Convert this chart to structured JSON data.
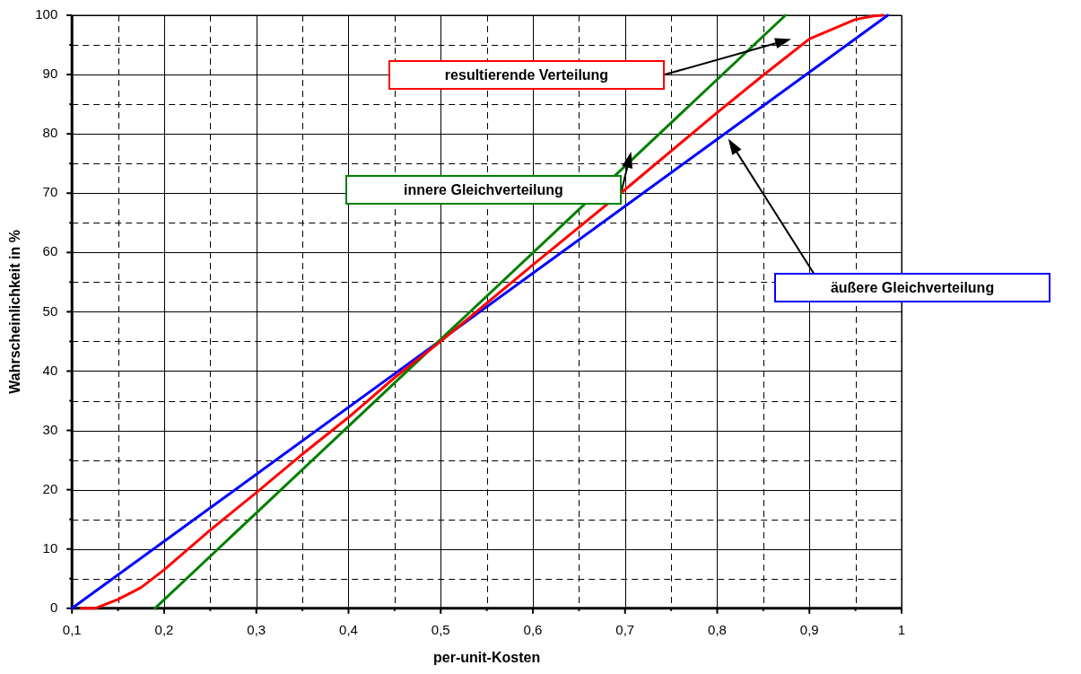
{
  "chart_data": {
    "type": "line",
    "xlabel": "per-unit-Kosten",
    "ylabel": "Wahrscheinlichkeit in %",
    "xlim": [
      0.1,
      1
    ],
    "ylim": [
      0,
      100
    ],
    "xticks": [
      {
        "value": 0.1,
        "label": "0,1"
      },
      {
        "value": 0.15,
        "label": null
      },
      {
        "value": 0.2,
        "label": "0,2"
      },
      {
        "value": 0.25,
        "label": null
      },
      {
        "value": 0.3,
        "label": "0,3"
      },
      {
        "value": 0.35,
        "label": null
      },
      {
        "value": 0.4,
        "label": "0,4"
      },
      {
        "value": 0.45,
        "label": null
      },
      {
        "value": 0.5,
        "label": "0,5"
      },
      {
        "value": 0.55,
        "label": null
      },
      {
        "value": 0.6,
        "label": "0,6"
      },
      {
        "value": 0.65,
        "label": null
      },
      {
        "value": 0.7,
        "label": "0,7"
      },
      {
        "value": 0.75,
        "label": null
      },
      {
        "value": 0.8,
        "label": "0,8"
      },
      {
        "value": 0.85,
        "label": null
      },
      {
        "value": 0.9,
        "label": "0,9"
      },
      {
        "value": 0.95,
        "label": null
      },
      1
    ],
    "yticks": [
      0,
      {
        "value": 5,
        "label": null
      },
      10,
      {
        "value": 15,
        "label": null
      },
      20,
      {
        "value": 25,
        "label": null
      },
      30,
      {
        "value": 35,
        "label": null
      },
      40,
      {
        "value": 45,
        "label": null
      },
      50,
      {
        "value": 55,
        "label": null
      },
      60,
      {
        "value": 65,
        "label": null
      },
      70,
      {
        "value": 75,
        "label": null
      },
      80,
      {
        "value": 85,
        "label": null
      },
      90,
      {
        "value": 95,
        "label": null
      },
      100
    ],
    "grid": true,
    "legend": false,
    "marker": "none",
    "line_style": "solid",
    "series": [
      {
        "color": "#ff0000",
        "x": [
          0.11,
          0.125,
          0.15,
          0.175,
          0.2,
          0.25,
          0.3,
          0.35,
          0.4,
          0.45,
          0.5,
          0.6,
          0.7,
          0.8,
          0.85,
          0.9,
          0.95,
          0.97,
          0.98
        ],
        "values": [
          0,
          0,
          1.5,
          3.5,
          6.5,
          13.2,
          19.5,
          26,
          32.2,
          38.9,
          45,
          57.9,
          70.6,
          83.6,
          89.9,
          96,
          99.3,
          99.9,
          100
        ]
      },
      {
        "color": "#008000",
        "x": [
          0.19,
          0.874
        ],
        "values": [
          0,
          100
        ]
      },
      {
        "color": "#0000ff",
        "x": [
          0.1,
          0.985
        ],
        "values": [
          0,
          100
        ]
      }
    ],
    "annotations": [
      "resultierende Verteilung",
      "innere Gleichverteilung",
      "äußere Gleichverteilung"
    ]
  }
}
